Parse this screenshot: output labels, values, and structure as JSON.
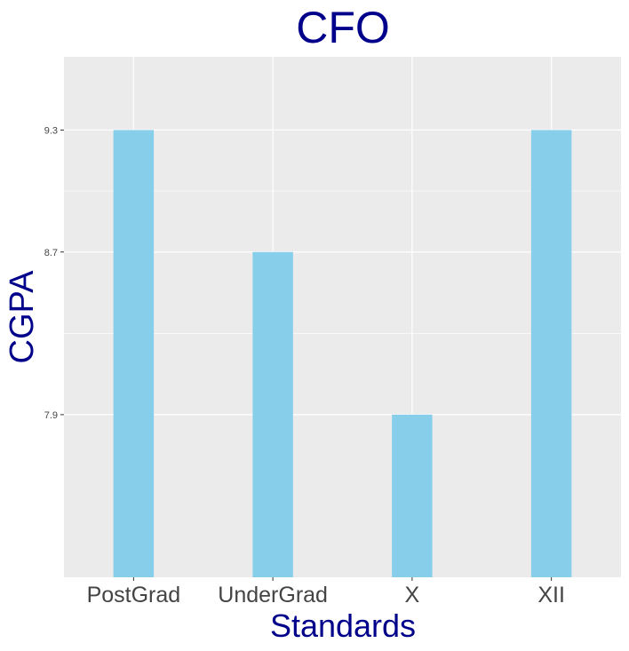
{
  "chart_data": {
    "type": "bar",
    "title": "CFO",
    "xlabel": "Standards",
    "ylabel": "CGPA",
    "categories": [
      "PostGrad",
      "UnderGrad",
      "X",
      "XII"
    ],
    "values": [
      9.3,
      8.7,
      7.9,
      9.3
    ],
    "ylim": [
      7.1,
      9.66
    ],
    "yticks": [
      7.9,
      8.7,
      9.3
    ],
    "ytick_labels": [
      "7.9",
      "8.7",
      "9.3"
    ],
    "grid": true,
    "colors": {
      "bar": "#87ceeb",
      "panel": "#ebebeb",
      "grid": "#ffffff",
      "title": "#00008b",
      "axis_text": "#444444"
    }
  }
}
